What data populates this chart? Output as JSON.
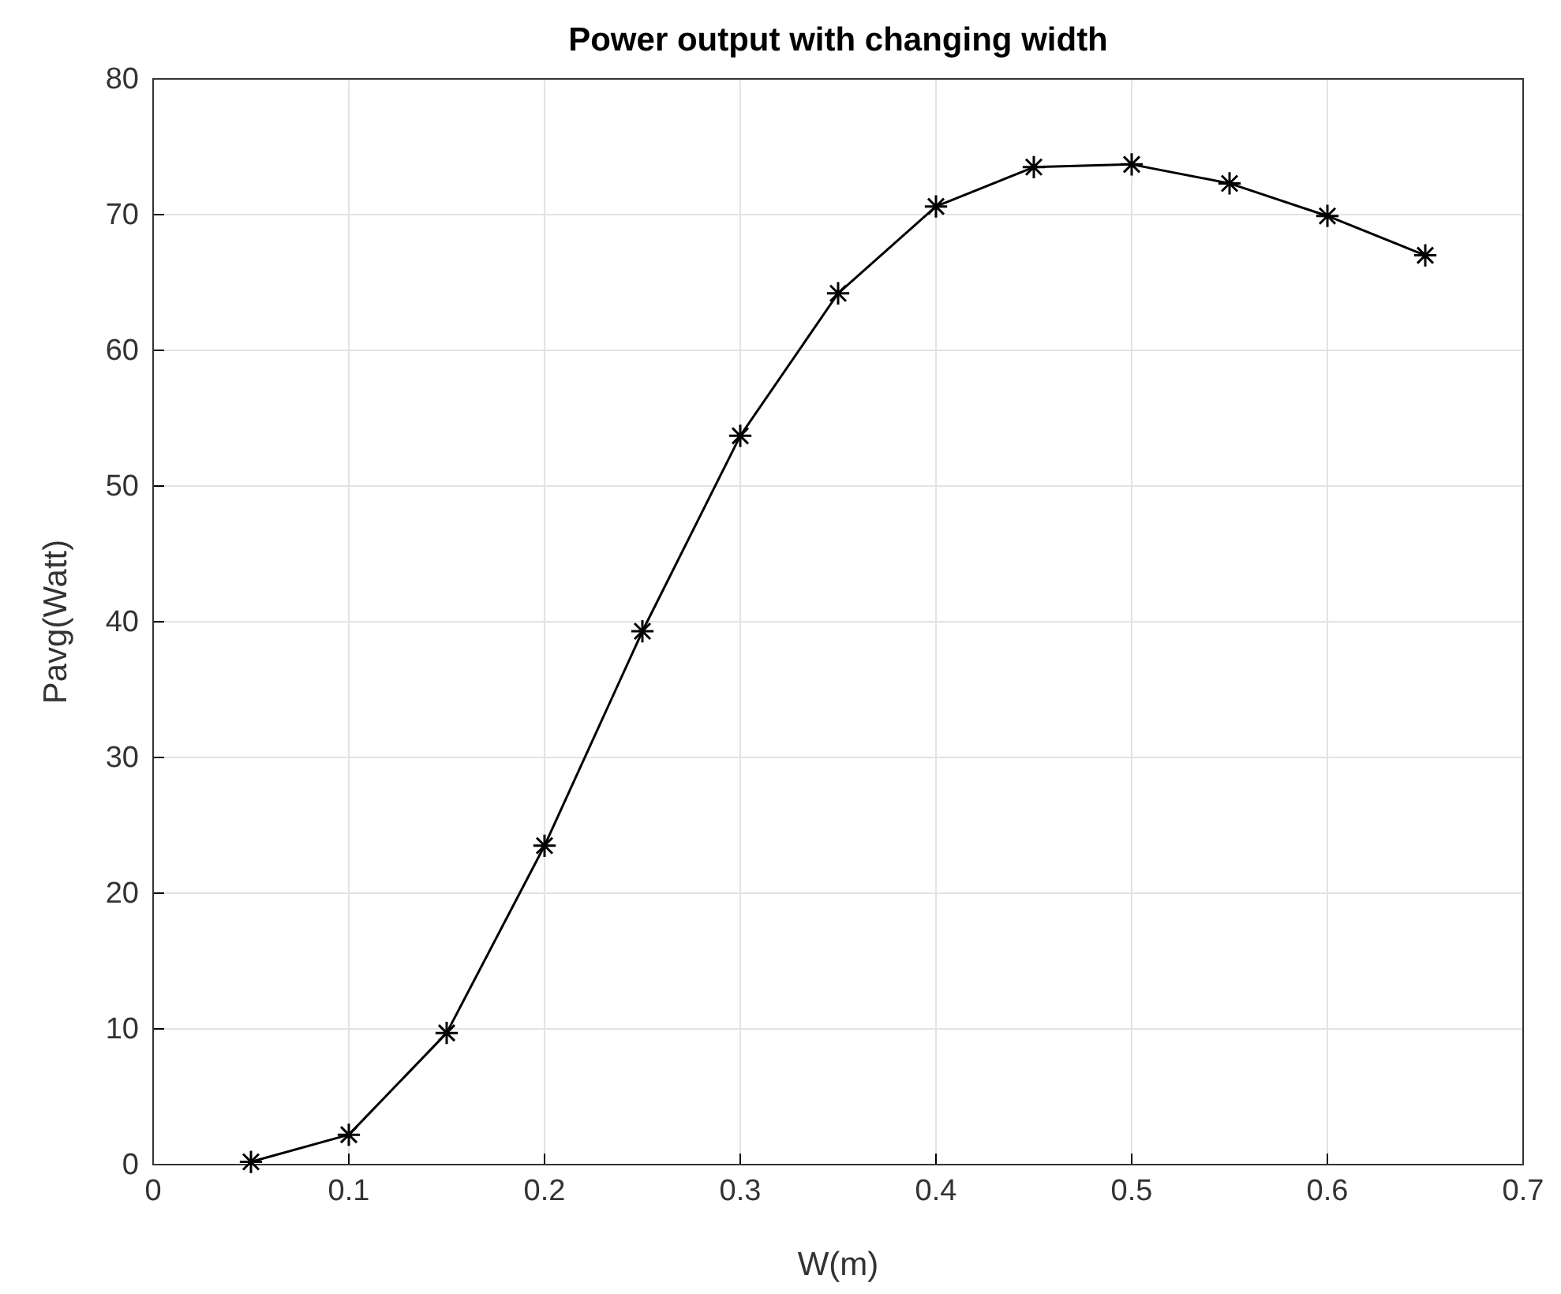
{
  "chart_data": {
    "type": "line",
    "title": "Power output with changing width",
    "xlabel": "W(m)",
    "ylabel": "Pavg(Watt)",
    "x": [
      0.05,
      0.1,
      0.15,
      0.2,
      0.25,
      0.3,
      0.35,
      0.4,
      0.45,
      0.5,
      0.55,
      0.6,
      0.65
    ],
    "series": [
      {
        "color": "#000000",
        "values": [
          0.2,
          2.2,
          9.7,
          23.5,
          39.3,
          53.7,
          64.2,
          70.6,
          73.5,
          73.7,
          72.3,
          69.9,
          67.0
        ]
      }
    ],
    "xlim": [
      0,
      0.7
    ],
    "xticks": [
      0,
      0.1,
      0.2,
      0.3,
      0.4,
      0.5,
      0.6,
      0.7
    ],
    "ylim": [
      0,
      80
    ],
    "yticks": [
      0,
      10,
      20,
      30,
      40,
      50,
      60,
      70,
      80
    ],
    "grid": true,
    "marker": "cross",
    "line_style": "solid"
  }
}
